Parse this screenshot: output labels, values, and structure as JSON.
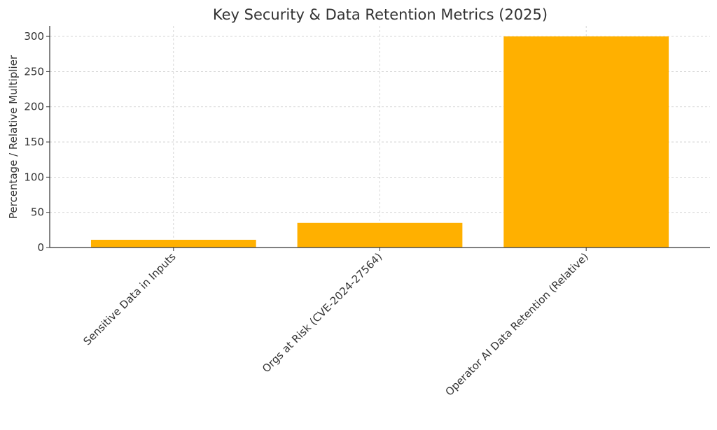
{
  "chart_data": {
    "type": "bar",
    "title": "Key Security & Data Retention Metrics (2025)",
    "xlabel": "",
    "ylabel": "Percentage / Relative Multiplier",
    "categories": [
      "Sensitive Data in Inputs",
      "Orgs at Risk (CVE-2024-27564)",
      "Operator AI Data Retention (Relative)"
    ],
    "values": [
      11,
      35,
      300
    ],
    "ylim": [
      0,
      315
    ],
    "yticks": [
      0,
      50,
      100,
      150,
      200,
      250,
      300
    ],
    "grid": true,
    "bar_color": "#ffb000"
  }
}
